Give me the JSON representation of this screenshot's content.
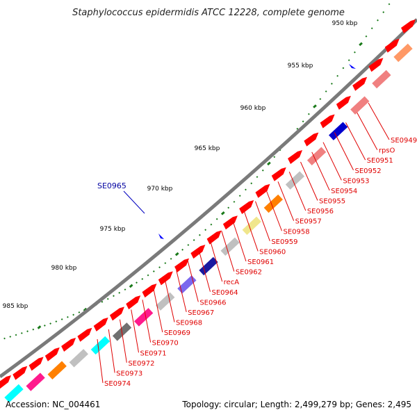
{
  "title": "Staphylococcus epidermidis ATCC 12228, complete genome",
  "footer": {
    "accession": "Accession: NC_004461",
    "summary": "Topology: circular; Length: 2,499,279 bp; Genes: 2,495"
  },
  "ticks": [
    {
      "label": "950 kbp",
      "pos": 950
    },
    {
      "label": "955 kbp",
      "pos": 955
    },
    {
      "label": "960 kbp",
      "pos": 960
    },
    {
      "label": "965 kbp",
      "pos": 965
    },
    {
      "label": "970 kbp",
      "pos": 970
    },
    {
      "label": "975 kbp",
      "pos": 975
    },
    {
      "label": "980 kbp",
      "pos": 980
    },
    {
      "label": "985 kbp",
      "pos": 985
    }
  ],
  "gene_labels": [
    "SE0949",
    "rpsO",
    "SE0951",
    "SE0952",
    "SE0953",
    "SE0954",
    "SE0955",
    "SE0956",
    "SE0957",
    "SE0958",
    "SE0959",
    "SE0960",
    "SE0961",
    "SE0962",
    "recA",
    "SE0964",
    "SE0966",
    "SE0967",
    "SE0968",
    "SE0969",
    "SE0970",
    "SE0971",
    "SE0972",
    "SE0973",
    "SE0974"
  ],
  "highlight_label": "SE0965",
  "colors": {
    "backbone": "#7a7a7a",
    "cds": "#ff0000",
    "tick": "#1a7a1a",
    "label": "#e00000",
    "highlight": "#0000c0"
  }
}
